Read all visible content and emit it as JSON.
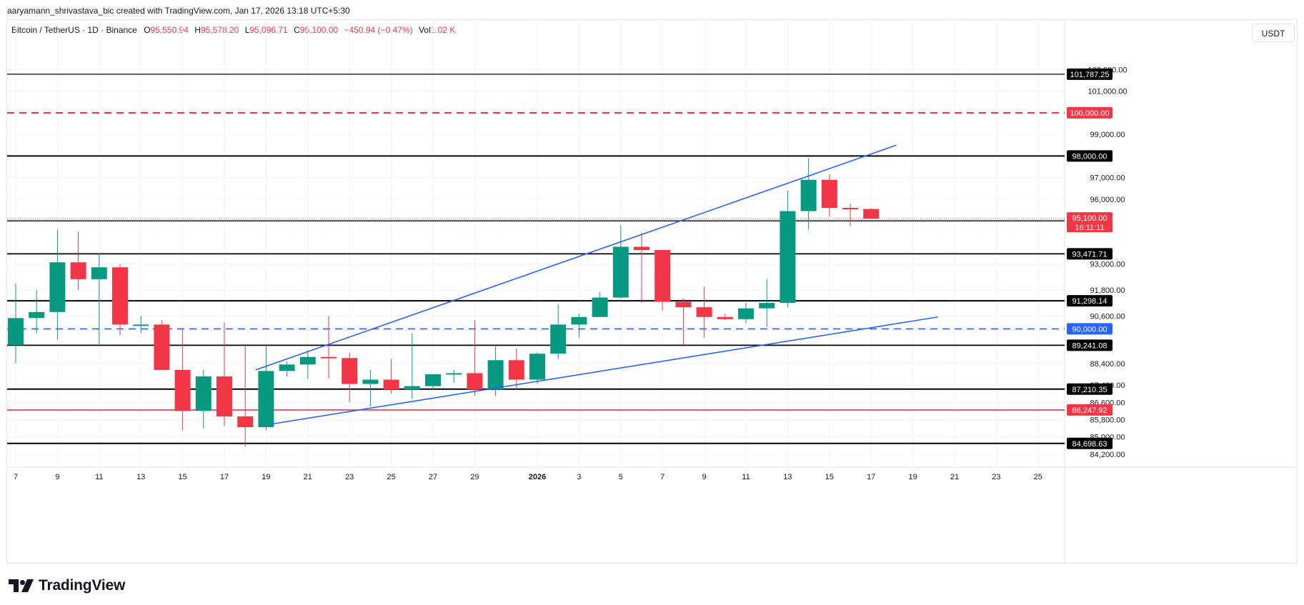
{
  "header": {
    "credit": "aaryamann_shrivastava_bic created with TradingView.com, Jan 17, 2026 13:18 UTC+5:30"
  },
  "legend": {
    "symbol": "Bitcoin / TetherUS · 1D · Binance",
    "open_label": "O",
    "open": "95,550.94",
    "high_label": "H",
    "high": "95,578.20",
    "low_label": "L",
    "low": "95,096.71",
    "close_label": "C",
    "close": "95,100.00",
    "change": "−450.94 (−0.47%)",
    "vol_label": "Vol",
    "vol": "1.02 K"
  },
  "currency_button": "USDT",
  "brand": {
    "name": "TradingView"
  },
  "colors": {
    "up": "#089981",
    "down": "#f23645",
    "trend": "#2962ff",
    "level": "#000000"
  },
  "chart_data": {
    "type": "candlestick",
    "axis": {
      "ylim": [
        83600,
        103700
      ],
      "y_ticks": [
        "102,000.00",
        "101,000.00",
        "99,000.00",
        "97,000.00",
        "96,000.00",
        "93,000.00",
        "91,800.00",
        "90,600.00",
        "88,400.00",
        "87,400.00",
        "86,600.00",
        "85,800.00",
        "85,000.00",
        "84,200.00"
      ],
      "x_ticks": [
        {
          "i": 0,
          "label": "7"
        },
        {
          "i": 2,
          "label": "9"
        },
        {
          "i": 4,
          "label": "11"
        },
        {
          "i": 6,
          "label": "13"
        },
        {
          "i": 8,
          "label": "15"
        },
        {
          "i": 10,
          "label": "17"
        },
        {
          "i": 12,
          "label": "19"
        },
        {
          "i": 14,
          "label": "21"
        },
        {
          "i": 16,
          "label": "23"
        },
        {
          "i": 18,
          "label": "25"
        },
        {
          "i": 20,
          "label": "27"
        },
        {
          "i": 22,
          "label": "29"
        },
        {
          "i": 25,
          "label": "2026"
        },
        {
          "i": 27,
          "label": "3"
        },
        {
          "i": 29,
          "label": "5"
        },
        {
          "i": 31,
          "label": "7"
        },
        {
          "i": 33,
          "label": "9"
        },
        {
          "i": 35,
          "label": "11"
        },
        {
          "i": 37,
          "label": "13"
        },
        {
          "i": 39,
          "label": "15"
        },
        {
          "i": 41,
          "label": "17"
        },
        {
          "i": 43,
          "label": "19"
        },
        {
          "i": 45,
          "label": "21"
        },
        {
          "i": 47,
          "label": "23"
        },
        {
          "i": 49,
          "label": "25"
        }
      ]
    },
    "candles": [
      {
        "date": "Dec 7",
        "o": 89250,
        "h": 92100,
        "l": 88400,
        "c": 90500
      },
      {
        "date": "Dec 8",
        "o": 90500,
        "h": 91800,
        "l": 89800,
        "c": 90780
      },
      {
        "date": "Dec 9",
        "o": 90780,
        "h": 94600,
        "l": 89500,
        "c": 93080
      },
      {
        "date": "Dec 10",
        "o": 93080,
        "h": 94500,
        "l": 91800,
        "c": 92300
      },
      {
        "date": "Dec 11",
        "o": 92300,
        "h": 93500,
        "l": 89300,
        "c": 92850
      },
      {
        "date": "Dec 12",
        "o": 92850,
        "h": 93000,
        "l": 89700,
        "c": 90200
      },
      {
        "date": "Dec 13",
        "o": 90200,
        "h": 90600,
        "l": 89800,
        "c": 90200
      },
      {
        "date": "Dec 14",
        "o": 90200,
        "h": 90400,
        "l": 88100,
        "c": 88100
      },
      {
        "date": "Dec 15",
        "o": 88100,
        "h": 90000,
        "l": 85300,
        "c": 86200
      },
      {
        "date": "Dec 16",
        "o": 86200,
        "h": 88100,
        "l": 85400,
        "c": 87800
      },
      {
        "date": "Dec 17",
        "o": 87800,
        "h": 90300,
        "l": 85500,
        "c": 85950
      },
      {
        "date": "Dec 18",
        "o": 85950,
        "h": 89300,
        "l": 84550,
        "c": 85450
      },
      {
        "date": "Dec 19",
        "o": 85450,
        "h": 89200,
        "l": 85300,
        "c": 88050
      },
      {
        "date": "Dec 20",
        "o": 88050,
        "h": 88500,
        "l": 87800,
        "c": 88350
      },
      {
        "date": "Dec 21",
        "o": 88350,
        "h": 89000,
        "l": 87700,
        "c": 88700
      },
      {
        "date": "Dec 22",
        "o": 88700,
        "h": 90600,
        "l": 87700,
        "c": 88650
      },
      {
        "date": "Dec 23",
        "o": 88650,
        "h": 88900,
        "l": 86600,
        "c": 87450
      },
      {
        "date": "Dec 24",
        "o": 87450,
        "h": 88100,
        "l": 86400,
        "c": 87650
      },
      {
        "date": "Dec 25",
        "o": 87650,
        "h": 88600,
        "l": 87000,
        "c": 87200
      },
      {
        "date": "Dec 26",
        "o": 87200,
        "h": 89800,
        "l": 86750,
        "c": 87350
      },
      {
        "date": "Dec 27",
        "o": 87350,
        "h": 87900,
        "l": 87200,
        "c": 87900
      },
      {
        "date": "Dec 28",
        "o": 87900,
        "h": 88100,
        "l": 87500,
        "c": 87950
      },
      {
        "date": "Dec 29",
        "o": 87950,
        "h": 90400,
        "l": 86900,
        "c": 87200
      },
      {
        "date": "Dec 30",
        "o": 87200,
        "h": 89200,
        "l": 86900,
        "c": 88550
      },
      {
        "date": "Dec 31",
        "o": 88550,
        "h": 89100,
        "l": 87200,
        "c": 87650
      },
      {
        "date": "Jan 1",
        "o": 87650,
        "h": 88900,
        "l": 87450,
        "c": 88850
      },
      {
        "date": "Jan 2",
        "o": 88850,
        "h": 91150,
        "l": 88600,
        "c": 90200
      },
      {
        "date": "Jan 3",
        "o": 90200,
        "h": 90700,
        "l": 89600,
        "c": 90550
      },
      {
        "date": "Jan 4",
        "o": 90550,
        "h": 91700,
        "l": 90550,
        "c": 91450
      },
      {
        "date": "Jan 5",
        "o": 91450,
        "h": 94800,
        "l": 91400,
        "c": 93800
      },
      {
        "date": "Jan 6",
        "o": 93800,
        "h": 94450,
        "l": 91200,
        "c": 93650
      },
      {
        "date": "Jan 7",
        "o": 93650,
        "h": 93650,
        "l": 90850,
        "c": 91250
      },
      {
        "date": "Jan 8",
        "o": 91250,
        "h": 91400,
        "l": 89250,
        "c": 91000
      },
      {
        "date": "Jan 9",
        "o": 91000,
        "h": 91950,
        "l": 89600,
        "c": 90550
      },
      {
        "date": "Jan 10",
        "o": 90550,
        "h": 90700,
        "l": 90400,
        "c": 90450
      },
      {
        "date": "Jan 11",
        "o": 90450,
        "h": 91200,
        "l": 90250,
        "c": 90950
      },
      {
        "date": "Jan 12",
        "o": 90950,
        "h": 92300,
        "l": 90100,
        "c": 91200
      },
      {
        "date": "Jan 13",
        "o": 91200,
        "h": 96400,
        "l": 91000,
        "c": 95450
      },
      {
        "date": "Jan 14",
        "o": 95450,
        "h": 97900,
        "l": 94600,
        "c": 96900
      },
      {
        "date": "Jan 15",
        "o": 96900,
        "h": 97150,
        "l": 95200,
        "c": 95600
      },
      {
        "date": "Jan 16",
        "o": 95600,
        "h": 95800,
        "l": 94750,
        "c": 95550
      },
      {
        "date": "Jan 17",
        "o": 95550,
        "h": 95578.2,
        "l": 95096.71,
        "c": 95100
      }
    ],
    "horizontal_levels": [
      {
        "value": 101787.25,
        "label": "101,787.25",
        "color": "#000000",
        "style": "solid",
        "width": 1.3
      },
      {
        "value": 100000,
        "label": "100,000.00",
        "color": "#f23645",
        "style": "dashed",
        "width": 2.2
      },
      {
        "value": 98000,
        "label": "98,000.00",
        "color": "#000000",
        "style": "solid",
        "width": 2
      },
      {
        "value": 95000,
        "label": "95,000.00",
        "color": "#000000",
        "style": "solid",
        "width": 1.4
      },
      {
        "value": 93471.71,
        "label": "93,471.71",
        "color": "#000000",
        "style": "solid",
        "width": 1.8
      },
      {
        "value": 91298.14,
        "label": "91,298.14",
        "color": "#000000",
        "style": "solid",
        "width": 2
      },
      {
        "value": 90000,
        "label": "90,000.00",
        "color": "#2962ff",
        "style": "dashed",
        "width": 1.6
      },
      {
        "value": 89241.08,
        "label": "89,241.08",
        "color": "#000000",
        "style": "solid",
        "width": 1.8
      },
      {
        "value": 87210.35,
        "label": "87,210.35",
        "color": "#000000",
        "style": "solid",
        "width": 2
      },
      {
        "value": 86247.92,
        "label": "86,247.92",
        "color": "#f23645",
        "style": "solid",
        "width": 1.6
      },
      {
        "value": 84698.63,
        "label": "84,698.63",
        "color": "#000000",
        "style": "solid",
        "width": 2
      }
    ],
    "trendlines": [
      {
        "from": {
          "i": 11.5,
          "v": 88100
        },
        "to": {
          "i": 42.2,
          "v": 98500
        },
        "color": "#2962ff"
      },
      {
        "from": {
          "i": 12.3,
          "v": 85600
        },
        "to": {
          "i": 44.2,
          "v": 90550
        },
        "color": "#2962ff"
      }
    ],
    "current_price": {
      "value": 95100,
      "label": "95,100.00",
      "countdown": "16:11:11",
      "color": "#f23645"
    }
  }
}
